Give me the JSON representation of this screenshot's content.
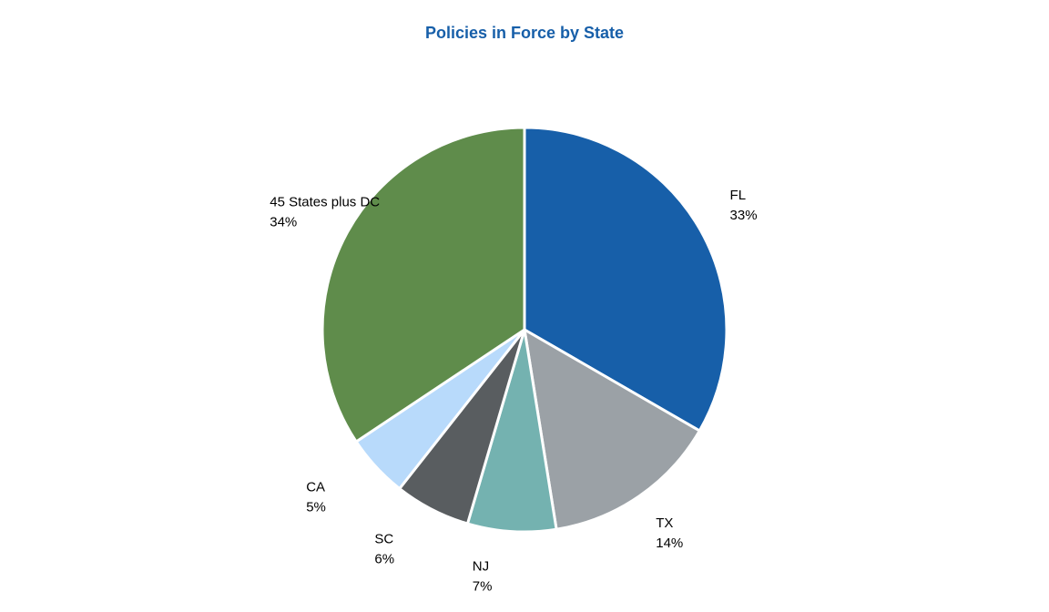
{
  "chart_data": {
    "type": "pie",
    "title": "Policies in Force by State",
    "categories": [
      "FL",
      "TX",
      "NJ",
      "SC",
      "CA",
      "45 States plus DC"
    ],
    "values": [
      33,
      14,
      7,
      6,
      5,
      34
    ],
    "value_labels": [
      "33%",
      "14%",
      "7%",
      "6%",
      "5%",
      "34%"
    ],
    "colors": [
      "#175fa9",
      "#9ba1a6",
      "#74b2b0",
      "#595d60",
      "#b8dafb",
      "#5f8c4b"
    ]
  }
}
